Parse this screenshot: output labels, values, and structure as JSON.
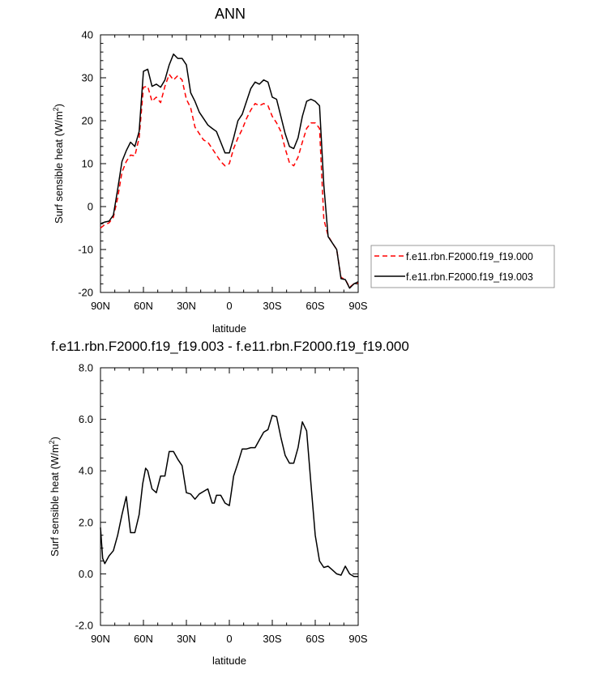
{
  "chart_data": [
    {
      "type": "line",
      "title": "ANN",
      "xlabel": "latitude",
      "ylabel": "Surf sensible heat (W/m",
      "ylabel_sup": "2",
      "ylabel_close": ")",
      "xlim": [
        90,
        -90
      ],
      "ylim": [
        -20,
        40
      ],
      "xtick_values": [
        90,
        60,
        30,
        0,
        -30,
        -60,
        -90
      ],
      "xtick_labels": [
        "90N",
        "60N",
        "30N",
        "0",
        "30S",
        "60S",
        "90S"
      ],
      "ytick_values": [
        -20,
        -10,
        0,
        10,
        20,
        30,
        40
      ],
      "ytick_labels": [
        "-20",
        "-10",
        "0",
        "10",
        "20",
        "30",
        "40"
      ],
      "legend": "right",
      "series": [
        {
          "name": "f.e11.rbn.F2000.f19_f19.000",
          "color": "#ff0000",
          "dashed": true,
          "x": [
            90,
            87,
            84,
            81,
            78,
            75,
            72,
            69,
            66,
            63,
            60,
            57,
            54,
            51,
            48,
            45,
            42,
            39,
            36,
            33,
            30,
            27,
            24,
            21,
            18,
            15,
            12,
            9,
            6,
            3,
            0,
            -3,
            -6,
            -9,
            -12,
            -15,
            -18,
            -21,
            -24,
            -27,
            -30,
            -33,
            -36,
            -39,
            -42,
            -45,
            -48,
            -51,
            -54,
            -57,
            -60,
            -63,
            -66,
            -69,
            -72,
            -75,
            -78,
            -81,
            -84,
            -87,
            -90
          ],
          "y": [
            -5,
            -4.2,
            -3.8,
            -2.5,
            2,
            8,
            10.5,
            12,
            11.8,
            16,
            27.8,
            28,
            24.5,
            25.5,
            24.2,
            28,
            30.8,
            29.5,
            30.5,
            29.5,
            25,
            23,
            18.5,
            17,
            15.5,
            15,
            13.5,
            12,
            10.5,
            9.5,
            10,
            13.5,
            16,
            18,
            20.5,
            22.5,
            24,
            23.5,
            24,
            23.5,
            21,
            19.5,
            17.5,
            13.5,
            10.2,
            9.5,
            11.5,
            15,
            18.2,
            19.5,
            19.5,
            18.2,
            -3,
            -6.8,
            -8.5,
            -10,
            -16.5,
            -17,
            -18.8,
            -18,
            -17.8
          ]
        },
        {
          "name": "f.e11.rbn.F2000.f19_f19.003",
          "color": "#000000",
          "dashed": false,
          "x": [
            90,
            87,
            84,
            81,
            78,
            75,
            72,
            69,
            66,
            63,
            60,
            57,
            54,
            51,
            48,
            45,
            42,
            39,
            36,
            33,
            30,
            27,
            24,
            21,
            18,
            15,
            12,
            9,
            6,
            3,
            0,
            -3,
            -6,
            -9,
            -12,
            -15,
            -18,
            -21,
            -24,
            -27,
            -30,
            -33,
            -36,
            -39,
            -42,
            -45,
            -48,
            -51,
            -54,
            -57,
            -60,
            -63,
            -66,
            -69,
            -72,
            -75,
            -78,
            -81,
            -84,
            -87,
            -90
          ],
          "y": [
            -4,
            -3.6,
            -3.4,
            -2,
            4,
            10.5,
            13,
            15,
            14,
            17.5,
            31.5,
            32,
            28,
            28.5,
            27.8,
            29.5,
            33,
            35.5,
            34.5,
            34.5,
            33,
            26.5,
            24.5,
            22,
            20.5,
            19,
            18.2,
            17.5,
            15,
            12.5,
            12.5,
            16,
            20,
            21.5,
            24.5,
            27.5,
            29,
            28.5,
            29.5,
            29,
            25.5,
            25,
            21,
            17,
            14,
            13.5,
            16,
            21,
            24.5,
            25,
            24.5,
            23.5,
            5,
            -7,
            -8.5,
            -10,
            -16.8,
            -17,
            -19,
            -18,
            -17.5
          ]
        }
      ]
    },
    {
      "type": "line",
      "title": "f.e11.rbn.F2000.f19_f19.003 - f.e11.rbn.F2000.f19_f19.000",
      "xlabel": "latitude",
      "ylabel": "Surf sensible heat (W/m",
      "ylabel_sup": "2",
      "ylabel_close": ")",
      "xlim": [
        90,
        -90
      ],
      "ylim": [
        -2,
        8
      ],
      "xtick_values": [
        90,
        60,
        30,
        0,
        -30,
        -60,
        -90
      ],
      "xtick_labels": [
        "90N",
        "60N",
        "30N",
        "0",
        "30S",
        "60S",
        "90S"
      ],
      "ytick_values": [
        -2,
        0,
        2,
        4,
        6,
        8
      ],
      "ytick_labels": [
        "-2.0",
        "0.0",
        "2.0",
        "4.0",
        "6.0",
        "8.0"
      ],
      "series": [
        {
          "color": "#000000",
          "dashed": false,
          "x": [
            90,
            88.5,
            87,
            84,
            81,
            78,
            75,
            72,
            69,
            66,
            63,
            60.5,
            58.5,
            57,
            54,
            51,
            48,
            45,
            42,
            39,
            36,
            33,
            30,
            27,
            24,
            21,
            18,
            15,
            12,
            10.5,
            9,
            6,
            3,
            0,
            -1.5,
            -3,
            -6,
            -9,
            -12,
            -15,
            -18,
            -21,
            -24,
            -27,
            -30,
            -33,
            -36,
            -39,
            -42,
            -45,
            -48,
            -51,
            -54,
            -57,
            -60,
            -63,
            -66,
            -69,
            -72,
            -75,
            -78,
            -81,
            -84,
            -87,
            -90
          ],
          "y": [
            1.8,
            0.6,
            0.4,
            0.7,
            0.9,
            1.5,
            2.3,
            3.0,
            1.6,
            1.6,
            2.3,
            3.5,
            4.1,
            4.0,
            3.3,
            3.15,
            3.8,
            3.8,
            4.75,
            4.75,
            4.45,
            4.2,
            3.15,
            3.1,
            2.9,
            3.1,
            3.2,
            3.3,
            2.75,
            2.75,
            3.05,
            3.05,
            2.75,
            2.65,
            3.2,
            3.8,
            4.3,
            4.85,
            4.85,
            4.9,
            4.9,
            5.2,
            5.5,
            5.6,
            6.15,
            6.1,
            5.3,
            4.6,
            4.3,
            4.3,
            4.9,
            5.9,
            5.55,
            3.5,
            1.5,
            0.5,
            0.25,
            0.3,
            0.15,
            0.0,
            -0.05,
            0.3,
            0.0,
            -0.1,
            -0.1
          ]
        }
      ]
    }
  ]
}
